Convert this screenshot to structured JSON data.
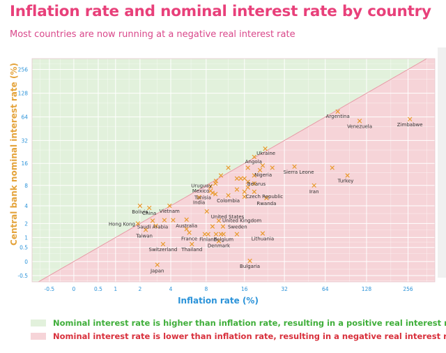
{
  "title": "Inflation rate and nominal interest rate by country",
  "subtitle": "Most countries are now running at a negative real interest rate",
  "legend": {
    "positive": {
      "label": "Nominal interest rate is higher than inflation rate, resulting in a positive real interest rate",
      "color": "#3fae3a",
      "fill": "#e2f1dc"
    },
    "negative": {
      "label": "Nominal interest rate is lower than inflation rate, resulting in a negative real interest rate",
      "color": "#d8303c",
      "fill": "#f6d4d8"
    }
  },
  "chart_data": {
    "type": "scatter",
    "title": "Inflation rate and nominal interest rate by country",
    "subtitle": "Most countries are now running at a negative real interest rate",
    "xlabel": "Inflation rate (%)",
    "ylabel": "Central bank nominal interest rate (%)",
    "x_scale": "symlog",
    "y_scale": "symlog",
    "xlim": [
      -1,
      400
    ],
    "ylim": [
      -0.8,
      350
    ],
    "x_ticks": [
      "-0.5",
      "0",
      "0.5",
      "1",
      "2",
      "4",
      "8",
      "16",
      "32",
      "64",
      "128",
      "256"
    ],
    "y_ticks": [
      "256",
      "128",
      "64",
      "32",
      "16",
      "8",
      "4",
      "2",
      "1",
      "0.5",
      "0",
      "-0.5"
    ],
    "grid": true,
    "marker": "x",
    "marker_color": "#e89a2c",
    "reference_line": "y = x",
    "points": [
      {
        "label": "Argentina",
        "x": 79,
        "y": 75
      },
      {
        "label": "Venezuela",
        "x": 114,
        "y": 57
      },
      {
        "label": "Zimbabwe",
        "x": 264,
        "y": 60
      },
      {
        "label": "Ukraine",
        "x": 23,
        "y": 25
      },
      {
        "label": "Angola",
        "x": 19,
        "y": 19.5
      },
      {
        "label": "Sierra Leone",
        "x": 38,
        "y": 14.5
      },
      {
        "label": "Nigeria",
        "x": 21,
        "y": 13
      },
      {
        "label": "Turkey",
        "x": 93,
        "y": 11
      },
      {
        "label": "Iran",
        "x": 53,
        "y": 8
      },
      {
        "label": "Uruguay",
        "x": 9.6,
        "y": 9.25
      },
      {
        "label": "Mexico",
        "x": 8.7,
        "y": 7.75
      },
      {
        "label": "Belarus",
        "x": 16,
        "y": 10
      },
      {
        "label": "Tunisia",
        "x": 9,
        "y": 6.25
      },
      {
        "label": "Colombia",
        "x": 12,
        "y": 5.75
      },
      {
        "label": "Czech Republic",
        "x": 16,
        "y": 6.5
      },
      {
        "label": "India",
        "x": 7,
        "y": 5.4
      },
      {
        "label": "Rwanda",
        "x": 23.5,
        "y": 5.25
      },
      {
        "label": "Bolivia",
        "x": 2,
        "y": 4
      },
      {
        "label": "China",
        "x": 2.5,
        "y": 3.7
      },
      {
        "label": "Vietnam",
        "x": 3.9,
        "y": 4
      },
      {
        "label": "United States",
        "x": 8.1,
        "y": 3.25
      },
      {
        "label": "Hong Kong",
        "x": 1.9,
        "y": 2
      },
      {
        "label": "Saudi Arabia",
        "x": 2.7,
        "y": 2.25
      },
      {
        "label": "Australia",
        "x": 5.5,
        "y": 2.35
      },
      {
        "label": "United Kingdom",
        "x": 10.1,
        "y": 2.25
      },
      {
        "label": "Sweden",
        "x": 10.9,
        "y": 1.75
      },
      {
        "label": "Taiwan",
        "x": 2.3,
        "y": 1.5
      },
      {
        "label": "France",
        "x": 5.8,
        "y": 1.3
      },
      {
        "label": "Finland",
        "x": 8.3,
        "y": 1.2
      },
      {
        "label": "Belgium",
        "x": 11,
        "y": 1.2
      },
      {
        "label": "Lithuania",
        "x": 22,
        "y": 1.25
      },
      {
        "label": "Denmark",
        "x": 10.1,
        "y": 0.8
      },
      {
        "label": "Switzerland",
        "x": 3.4,
        "y": 0.65
      },
      {
        "label": "Thailand",
        "x": 6.1,
        "y": 0.65
      },
      {
        "label": "Bulgaria",
        "x": 17.6,
        "y": 0.02
      },
      {
        "label": "Japan",
        "x": 3.0,
        "y": -0.1
      },
      {
        "label": "",
        "x": 10.5,
        "y": 11
      },
      {
        "label": "",
        "x": 12,
        "y": 14
      },
      {
        "label": "",
        "x": 14,
        "y": 10
      },
      {
        "label": "",
        "x": 17,
        "y": 14
      },
      {
        "label": "",
        "x": 19,
        "y": 11
      },
      {
        "label": "",
        "x": 17,
        "y": 9
      },
      {
        "label": "",
        "x": 22,
        "y": 15
      },
      {
        "label": "",
        "x": 26,
        "y": 14
      },
      {
        "label": "",
        "x": 14,
        "y": 7
      },
      {
        "label": "",
        "x": 15,
        "y": 10
      },
      {
        "label": "",
        "x": 16,
        "y": 5.5
      },
      {
        "label": "",
        "x": 17,
        "y": 7.5
      },
      {
        "label": "",
        "x": 19,
        "y": 6.5
      },
      {
        "label": "",
        "x": 19,
        "y": 8.5
      },
      {
        "label": "",
        "x": 9.5,
        "y": 8.5
      },
      {
        "label": "",
        "x": 9.5,
        "y": 6
      },
      {
        "label": "",
        "x": 8.7,
        "y": 6.7
      },
      {
        "label": "",
        "x": 72,
        "y": 14
      },
      {
        "label": "",
        "x": 3.5,
        "y": 2.3
      },
      {
        "label": "",
        "x": 4.2,
        "y": 2.3
      },
      {
        "label": "",
        "x": 2.9,
        "y": 1.8
      },
      {
        "label": "",
        "x": 5.5,
        "y": 1.55
      },
      {
        "label": "",
        "x": 9.0,
        "y": 1.75
      },
      {
        "label": "",
        "x": 7.8,
        "y": 1.2
      },
      {
        "label": "",
        "x": 9.6,
        "y": 1.2
      },
      {
        "label": "",
        "x": 10.5,
        "y": 1.2
      },
      {
        "label": "",
        "x": 14,
        "y": 1.2
      }
    ]
  }
}
